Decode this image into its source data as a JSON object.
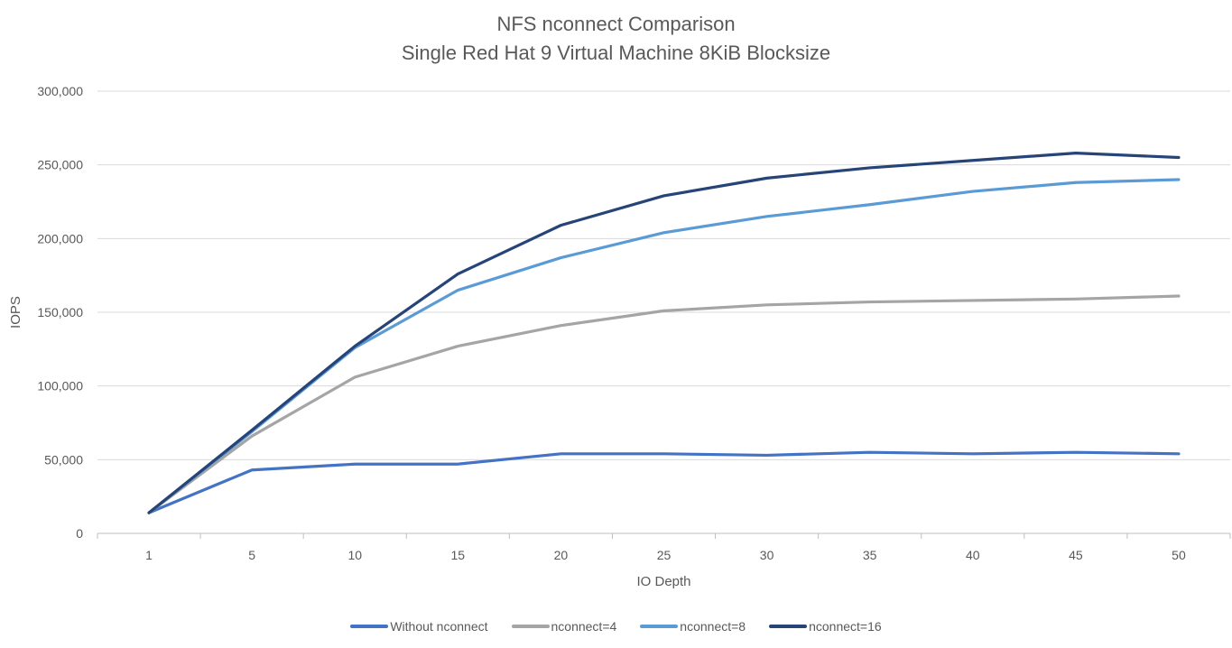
{
  "chart_data": {
    "type": "line",
    "title": "NFS nconnect Comparison",
    "subtitle": "Single Red Hat 9 Virtual Machine 8KiB Blocksize",
    "xlabel": "IO Depth",
    "ylabel": "IOPS",
    "categories": [
      "1",
      "5",
      "10",
      "15",
      "20",
      "25",
      "30",
      "35",
      "40",
      "45",
      "50"
    ],
    "ylim": [
      0,
      300000
    ],
    "yticks": [
      "0",
      "50,000",
      "100,000",
      "150,000",
      "200,000",
      "250,000",
      "300,000"
    ],
    "grid": true,
    "legend_position": "bottom",
    "series": [
      {
        "name": "Without nconnect",
        "color": "#4472C4",
        "values": [
          14000,
          43000,
          47000,
          47000,
          54000,
          54000,
          53000,
          55000,
          54000,
          55000,
          54000
        ]
      },
      {
        "name": "nconnect=4",
        "color": "#A5A5A5",
        "values": [
          14000,
          66000,
          106000,
          127000,
          141000,
          151000,
          155000,
          157000,
          158000,
          159000,
          161000
        ]
      },
      {
        "name": "nconnect=8",
        "color": "#5B9BD5",
        "values": [
          14000,
          69000,
          126000,
          165000,
          187000,
          204000,
          215000,
          223000,
          232000,
          238000,
          240000
        ]
      },
      {
        "name": "nconnect=16",
        "color": "#264478",
        "values": [
          14000,
          70000,
          127000,
          176000,
          209000,
          229000,
          241000,
          248000,
          253000,
          258000,
          255000
        ]
      }
    ]
  }
}
